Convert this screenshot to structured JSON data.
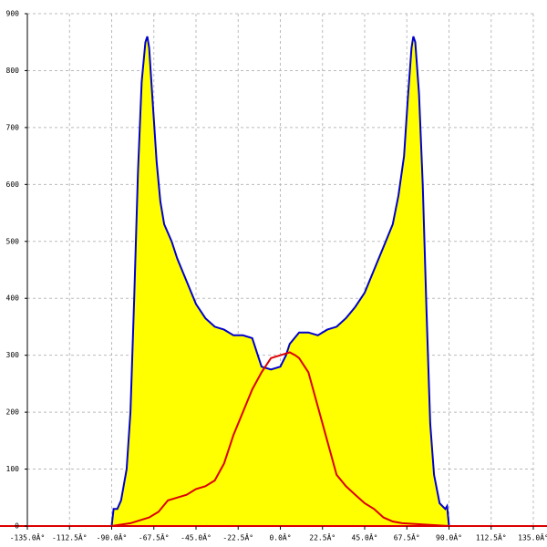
{
  "chart_data": {
    "type": "area",
    "xlim": [
      -135,
      135
    ],
    "ylim": [
      0,
      900
    ],
    "xticks": [
      {
        "value": -135,
        "label": "-135.0Â°"
      },
      {
        "value": -112.5,
        "label": "-112.5Â°"
      },
      {
        "value": -90,
        "label": "-90.0Â°"
      },
      {
        "value": -67.5,
        "label": "-67.5Â°"
      },
      {
        "value": -45,
        "label": "-45.0Â°"
      },
      {
        "value": -22.5,
        "label": "-22.5Â°"
      },
      {
        "value": 0,
        "label": "0.0Â°"
      },
      {
        "value": 22.5,
        "label": "22.5Â°"
      },
      {
        "value": 45,
        "label": "45.0Â°"
      },
      {
        "value": 67.5,
        "label": "67.5Â°"
      },
      {
        "value": 90,
        "label": "90.0Â°"
      },
      {
        "value": 112.5,
        "label": "112.5Â°"
      },
      {
        "value": 135,
        "label": "135.0Â°"
      }
    ],
    "yticks": [
      0,
      100,
      200,
      300,
      400,
      500,
      600,
      700,
      800,
      900
    ],
    "grid": true,
    "series": [
      {
        "fill": "#ffff00",
        "color": "#0000cc",
        "x": [
          -90,
          -89,
          -87,
          -85,
          -82,
          -80,
          -78,
          -76,
          -74,
          -72,
          -71,
          -70,
          -68,
          -66,
          -64,
          -62,
          -60,
          -58,
          -55,
          -50,
          -45,
          -40,
          -35,
          -30,
          -25,
          -20,
          -15,
          -12,
          -10,
          -5,
          0,
          3,
          5,
          10,
          15,
          20,
          25,
          30,
          35,
          40,
          45,
          50,
          55,
          60,
          63,
          66,
          68,
          70,
          71,
          72,
          74,
          76,
          78,
          80,
          82,
          85,
          88,
          89,
          90
        ],
        "values": [
          0,
          30,
          30,
          45,
          100,
          200,
          400,
          620,
          780,
          850,
          860,
          840,
          740,
          640,
          570,
          530,
          515,
          500,
          470,
          430,
          390,
          365,
          350,
          345,
          335,
          335,
          330,
          300,
          280,
          275,
          280,
          300,
          320,
          340,
          340,
          335,
          345,
          350,
          365,
          385,
          410,
          450,
          490,
          530,
          580,
          650,
          750,
          840,
          860,
          850,
          760,
          600,
          380,
          180,
          90,
          40,
          30,
          35,
          0
        ]
      },
      {
        "color": "#dd0000",
        "x": [
          -90,
          -80,
          -70,
          -65,
          -60,
          -55,
          -50,
          -45,
          -40,
          -35,
          -30,
          -25,
          -20,
          -15,
          -10,
          -5,
          0,
          5,
          8,
          10,
          15,
          20,
          25,
          30,
          35,
          40,
          45,
          50,
          55,
          60,
          65,
          80,
          90
        ],
        "values": [
          0,
          5,
          15,
          25,
          45,
          50,
          55,
          65,
          70,
          80,
          110,
          160,
          200,
          240,
          270,
          295,
          300,
          305,
          300,
          295,
          270,
          210,
          150,
          90,
          70,
          55,
          40,
          30,
          15,
          8,
          5,
          2,
          0
        ]
      }
    ]
  }
}
